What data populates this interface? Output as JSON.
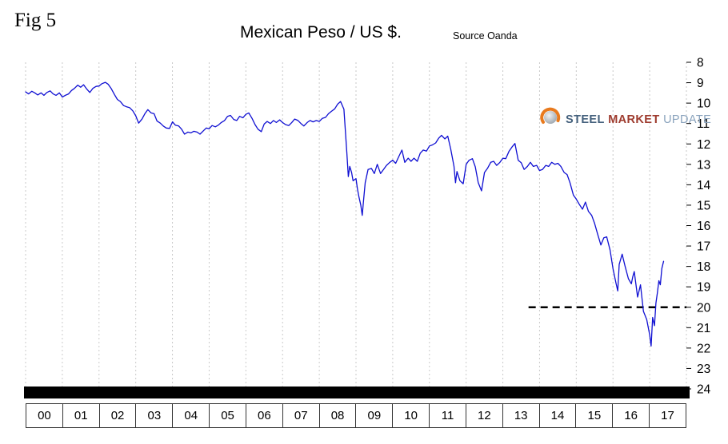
{
  "header": {
    "fig_label": "Fig 5",
    "title": "Mexican Peso / US $.",
    "source": "Source Oanda"
  },
  "logo": {
    "name": "Steel Market Update",
    "words": [
      {
        "text": "STEEL",
        "color": "#44607c"
      },
      {
        "text": "MARKET",
        "color": "#9e3b2e"
      },
      {
        "text": "UPDATE",
        "color": "#8aa3bd"
      }
    ],
    "icon_color": "#e87a1e"
  },
  "colors": {
    "line": "#0f0fd2",
    "grid": "#c9c9c9",
    "bottom_bar": "#000000",
    "axis_text": "#000000",
    "reference_line": "#000000"
  },
  "chart_data": {
    "type": "line",
    "title": "Mexican Peso / US $.",
    "source": "Source Oanda",
    "x_axis": {
      "domain": [
        2000,
        2018
      ],
      "labels": [
        "00",
        "01",
        "02",
        "03",
        "04",
        "05",
        "06",
        "07",
        "08",
        "09",
        "10",
        "11",
        "12",
        "13",
        "14",
        "15",
        "16",
        "17"
      ]
    },
    "y_axis": {
      "domain": [
        8,
        24
      ],
      "inverted_display": "values increase downward",
      "ticks": [
        8,
        9,
        10,
        11,
        12,
        13,
        14,
        15,
        16,
        17,
        18,
        19,
        20,
        21,
        22,
        23,
        24
      ]
    },
    "grid": "vertical-dotted",
    "legend_position": "none",
    "reference_line": {
      "value": 20,
      "x_start": 2013.7,
      "x_end": 2018,
      "style": "dashed",
      "color": "#000000"
    },
    "series": [
      {
        "name": "MXN per USD",
        "color": "#0f0fd2",
        "points": [
          [
            2000.0,
            9.45
          ],
          [
            2000.08,
            9.55
          ],
          [
            2000.17,
            9.42
          ],
          [
            2000.25,
            9.5
          ],
          [
            2000.33,
            9.6
          ],
          [
            2000.42,
            9.5
          ],
          [
            2000.5,
            9.62
          ],
          [
            2000.58,
            9.48
          ],
          [
            2000.67,
            9.4
          ],
          [
            2000.75,
            9.55
          ],
          [
            2000.83,
            9.62
          ],
          [
            2000.92,
            9.5
          ],
          [
            2001.0,
            9.7
          ],
          [
            2001.08,
            9.62
          ],
          [
            2001.17,
            9.55
          ],
          [
            2001.25,
            9.38
          ],
          [
            2001.33,
            9.28
          ],
          [
            2001.42,
            9.12
          ],
          [
            2001.5,
            9.22
          ],
          [
            2001.58,
            9.1
          ],
          [
            2001.67,
            9.32
          ],
          [
            2001.75,
            9.48
          ],
          [
            2001.83,
            9.28
          ],
          [
            2001.92,
            9.18
          ],
          [
            2002.0,
            9.16
          ],
          [
            2002.08,
            9.05
          ],
          [
            2002.17,
            8.98
          ],
          [
            2002.25,
            9.08
          ],
          [
            2002.33,
            9.28
          ],
          [
            2002.42,
            9.58
          ],
          [
            2002.5,
            9.82
          ],
          [
            2002.58,
            9.92
          ],
          [
            2002.67,
            10.12
          ],
          [
            2002.75,
            10.18
          ],
          [
            2002.83,
            10.22
          ],
          [
            2002.92,
            10.38
          ],
          [
            2003.0,
            10.62
          ],
          [
            2003.08,
            10.98
          ],
          [
            2003.17,
            10.78
          ],
          [
            2003.25,
            10.52
          ],
          [
            2003.33,
            10.32
          ],
          [
            2003.42,
            10.48
          ],
          [
            2003.5,
            10.52
          ],
          [
            2003.58,
            10.88
          ],
          [
            2003.67,
            10.98
          ],
          [
            2003.75,
            11.12
          ],
          [
            2003.83,
            11.22
          ],
          [
            2003.92,
            11.24
          ],
          [
            2004.0,
            10.92
          ],
          [
            2004.08,
            11.08
          ],
          [
            2004.17,
            11.12
          ],
          [
            2004.25,
            11.28
          ],
          [
            2004.33,
            11.52
          ],
          [
            2004.42,
            11.42
          ],
          [
            2004.5,
            11.46
          ],
          [
            2004.58,
            11.38
          ],
          [
            2004.67,
            11.42
          ],
          [
            2004.75,
            11.52
          ],
          [
            2004.83,
            11.38
          ],
          [
            2004.92,
            11.22
          ],
          [
            2005.0,
            11.26
          ],
          [
            2005.08,
            11.1
          ],
          [
            2005.17,
            11.16
          ],
          [
            2005.25,
            11.08
          ],
          [
            2005.33,
            10.95
          ],
          [
            2005.42,
            10.85
          ],
          [
            2005.5,
            10.65
          ],
          [
            2005.58,
            10.6
          ],
          [
            2005.67,
            10.8
          ],
          [
            2005.75,
            10.85
          ],
          [
            2005.83,
            10.65
          ],
          [
            2005.92,
            10.72
          ],
          [
            2006.0,
            10.55
          ],
          [
            2006.08,
            10.48
          ],
          [
            2006.17,
            10.75
          ],
          [
            2006.25,
            11.05
          ],
          [
            2006.33,
            11.28
          ],
          [
            2006.42,
            11.4
          ],
          [
            2006.5,
            11.02
          ],
          [
            2006.58,
            10.9
          ],
          [
            2006.67,
            11.0
          ],
          [
            2006.75,
            10.85
          ],
          [
            2006.83,
            10.95
          ],
          [
            2006.92,
            10.82
          ],
          [
            2007.0,
            10.95
          ],
          [
            2007.08,
            11.05
          ],
          [
            2007.17,
            11.1
          ],
          [
            2007.25,
            10.95
          ],
          [
            2007.33,
            10.78
          ],
          [
            2007.42,
            10.85
          ],
          [
            2007.5,
            11.0
          ],
          [
            2007.58,
            11.12
          ],
          [
            2007.67,
            10.95
          ],
          [
            2007.75,
            10.85
          ],
          [
            2007.83,
            10.92
          ],
          [
            2007.92,
            10.85
          ],
          [
            2008.0,
            10.9
          ],
          [
            2008.08,
            10.75
          ],
          [
            2008.17,
            10.7
          ],
          [
            2008.25,
            10.52
          ],
          [
            2008.33,
            10.4
          ],
          [
            2008.42,
            10.28
          ],
          [
            2008.5,
            10.05
          ],
          [
            2008.58,
            9.92
          ],
          [
            2008.67,
            10.3
          ],
          [
            2008.75,
            12.4
          ],
          [
            2008.79,
            13.6
          ],
          [
            2008.83,
            13.1
          ],
          [
            2008.88,
            13.4
          ],
          [
            2008.92,
            13.8
          ],
          [
            2009.0,
            13.7
          ],
          [
            2009.04,
            14.2
          ],
          [
            2009.08,
            14.6
          ],
          [
            2009.13,
            15.0
          ],
          [
            2009.17,
            15.5
          ],
          [
            2009.21,
            14.7
          ],
          [
            2009.25,
            13.9
          ],
          [
            2009.33,
            13.25
          ],
          [
            2009.42,
            13.2
          ],
          [
            2009.5,
            13.45
          ],
          [
            2009.58,
            13.0
          ],
          [
            2009.67,
            13.45
          ],
          [
            2009.75,
            13.25
          ],
          [
            2009.83,
            13.05
          ],
          [
            2009.92,
            12.9
          ],
          [
            2010.0,
            12.8
          ],
          [
            2010.08,
            12.95
          ],
          [
            2010.17,
            12.6
          ],
          [
            2010.25,
            12.3
          ],
          [
            2010.33,
            12.9
          ],
          [
            2010.42,
            12.7
          ],
          [
            2010.5,
            12.85
          ],
          [
            2010.58,
            12.7
          ],
          [
            2010.67,
            12.85
          ],
          [
            2010.75,
            12.45
          ],
          [
            2010.83,
            12.3
          ],
          [
            2010.92,
            12.35
          ],
          [
            2011.0,
            12.1
          ],
          [
            2011.08,
            12.05
          ],
          [
            2011.17,
            11.95
          ],
          [
            2011.25,
            11.72
          ],
          [
            2011.33,
            11.58
          ],
          [
            2011.42,
            11.75
          ],
          [
            2011.5,
            11.62
          ],
          [
            2011.58,
            12.25
          ],
          [
            2011.67,
            13.1
          ],
          [
            2011.71,
            13.9
          ],
          [
            2011.75,
            13.35
          ],
          [
            2011.83,
            13.8
          ],
          [
            2011.92,
            13.95
          ],
          [
            2012.0,
            13.0
          ],
          [
            2012.08,
            12.8
          ],
          [
            2012.17,
            12.72
          ],
          [
            2012.25,
            13.12
          ],
          [
            2012.33,
            13.9
          ],
          [
            2012.42,
            14.3
          ],
          [
            2012.5,
            13.4
          ],
          [
            2012.58,
            13.2
          ],
          [
            2012.67,
            12.9
          ],
          [
            2012.75,
            12.85
          ],
          [
            2012.83,
            13.05
          ],
          [
            2012.92,
            12.9
          ],
          [
            2013.0,
            12.7
          ],
          [
            2013.08,
            12.72
          ],
          [
            2013.17,
            12.35
          ],
          [
            2013.25,
            12.15
          ],
          [
            2013.33,
            11.98
          ],
          [
            2013.42,
            12.8
          ],
          [
            2013.5,
            12.92
          ],
          [
            2013.58,
            13.25
          ],
          [
            2013.67,
            13.1
          ],
          [
            2013.75,
            12.9
          ],
          [
            2013.83,
            13.1
          ],
          [
            2013.92,
            13.05
          ],
          [
            2014.0,
            13.3
          ],
          [
            2014.08,
            13.25
          ],
          [
            2014.17,
            13.05
          ],
          [
            2014.25,
            13.1
          ],
          [
            2014.33,
            12.9
          ],
          [
            2014.42,
            13.0
          ],
          [
            2014.5,
            12.95
          ],
          [
            2014.58,
            13.1
          ],
          [
            2014.67,
            13.4
          ],
          [
            2014.75,
            13.5
          ],
          [
            2014.83,
            13.9
          ],
          [
            2014.92,
            14.5
          ],
          [
            2015.0,
            14.7
          ],
          [
            2015.08,
            14.95
          ],
          [
            2015.17,
            15.2
          ],
          [
            2015.25,
            14.85
          ],
          [
            2015.33,
            15.3
          ],
          [
            2015.42,
            15.5
          ],
          [
            2015.5,
            15.9
          ],
          [
            2015.58,
            16.4
          ],
          [
            2015.67,
            16.95
          ],
          [
            2015.75,
            16.6
          ],
          [
            2015.83,
            16.55
          ],
          [
            2015.92,
            17.2
          ],
          [
            2016.0,
            18.1
          ],
          [
            2016.08,
            18.8
          ],
          [
            2016.13,
            19.2
          ],
          [
            2016.17,
            17.9
          ],
          [
            2016.25,
            17.4
          ],
          [
            2016.33,
            18.0
          ],
          [
            2016.42,
            18.6
          ],
          [
            2016.5,
            18.85
          ],
          [
            2016.54,
            18.5
          ],
          [
            2016.58,
            18.25
          ],
          [
            2016.67,
            19.5
          ],
          [
            2016.75,
            18.9
          ],
          [
            2016.83,
            20.2
          ],
          [
            2016.92,
            20.6
          ],
          [
            2017.0,
            21.35
          ],
          [
            2017.04,
            21.9
          ],
          [
            2017.08,
            20.5
          ],
          [
            2017.13,
            20.9
          ],
          [
            2017.17,
            19.8
          ],
          [
            2017.21,
            19.3
          ],
          [
            2017.25,
            18.7
          ],
          [
            2017.29,
            18.9
          ],
          [
            2017.33,
            18.1
          ],
          [
            2017.38,
            17.75
          ]
        ]
      }
    ]
  }
}
